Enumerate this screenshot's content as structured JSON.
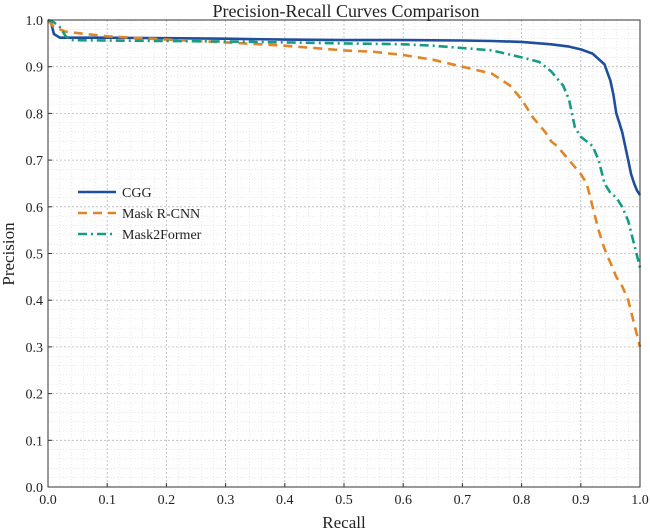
{
  "chart_data": {
    "type": "line",
    "title": "Precision-Recall Curves Comparison",
    "xlabel": "Recall",
    "ylabel": "Precision",
    "xlim": [
      0,
      1
    ],
    "ylim": [
      0,
      1
    ],
    "xticks": [
      "0.0",
      "0.1",
      "0.2",
      "0.3",
      "0.4",
      "0.5",
      "0.6",
      "0.7",
      "0.8",
      "0.9",
      "1.0"
    ],
    "yticks": [
      "0.0",
      "0.1",
      "0.2",
      "0.3",
      "0.4",
      "0.5",
      "0.6",
      "0.7",
      "0.8",
      "0.9",
      "1.0"
    ],
    "grid": true,
    "legend_position": "center-left",
    "series": [
      {
        "name": "CGG",
        "color": "#1f4e9c",
        "style": "solid",
        "x": [
          0,
          0.005,
          0.01,
          0.02,
          0.1,
          0.2,
          0.3,
          0.4,
          0.5,
          0.6,
          0.7,
          0.75,
          0.8,
          0.85,
          0.88,
          0.9,
          0.92,
          0.94,
          0.95,
          0.955,
          0.96,
          0.965,
          0.97,
          0.975,
          0.98,
          0.985,
          0.99,
          0.995,
          1.0
        ],
        "y": [
          1.0,
          0.995,
          0.97,
          0.962,
          0.962,
          0.961,
          0.96,
          0.958,
          0.957,
          0.957,
          0.956,
          0.955,
          0.953,
          0.948,
          0.943,
          0.937,
          0.928,
          0.905,
          0.87,
          0.84,
          0.8,
          0.78,
          0.76,
          0.73,
          0.7,
          0.67,
          0.65,
          0.635,
          0.625
        ]
      },
      {
        "name": "Mask R-CNN",
        "color": "#e0852a",
        "style": "dashed",
        "x": [
          0,
          0.01,
          0.03,
          0.05,
          0.1,
          0.2,
          0.3,
          0.4,
          0.5,
          0.55,
          0.6,
          0.65,
          0.7,
          0.75,
          0.78,
          0.8,
          0.82,
          0.84,
          0.85,
          0.86,
          0.88,
          0.9,
          0.91,
          0.92,
          0.93,
          0.94,
          0.95,
          0.96,
          0.97,
          0.98,
          0.99,
          1.0
        ],
        "y": [
          1.0,
          0.985,
          0.975,
          0.972,
          0.965,
          0.958,
          0.952,
          0.945,
          0.935,
          0.932,
          0.925,
          0.915,
          0.9,
          0.885,
          0.86,
          0.83,
          0.79,
          0.76,
          0.74,
          0.73,
          0.7,
          0.67,
          0.65,
          0.6,
          0.55,
          0.51,
          0.48,
          0.45,
          0.43,
          0.4,
          0.35,
          0.3
        ]
      },
      {
        "name": "Mask2Former",
        "color": "#169c84",
        "style": "dashdot",
        "x": [
          0,
          0.01,
          0.02,
          0.03,
          0.04,
          0.1,
          0.2,
          0.3,
          0.4,
          0.5,
          0.6,
          0.65,
          0.7,
          0.75,
          0.8,
          0.83,
          0.85,
          0.87,
          0.88,
          0.89,
          0.9,
          0.91,
          0.92,
          0.93,
          0.94,
          0.95,
          0.96,
          0.97,
          0.98,
          0.99,
          1.0
        ],
        "y": [
          1.0,
          0.995,
          0.985,
          0.965,
          0.957,
          0.956,
          0.955,
          0.954,
          0.952,
          0.95,
          0.948,
          0.945,
          0.94,
          0.935,
          0.92,
          0.91,
          0.89,
          0.86,
          0.83,
          0.77,
          0.75,
          0.74,
          0.73,
          0.7,
          0.65,
          0.63,
          0.62,
          0.6,
          0.57,
          0.52,
          0.47
        ]
      }
    ]
  }
}
